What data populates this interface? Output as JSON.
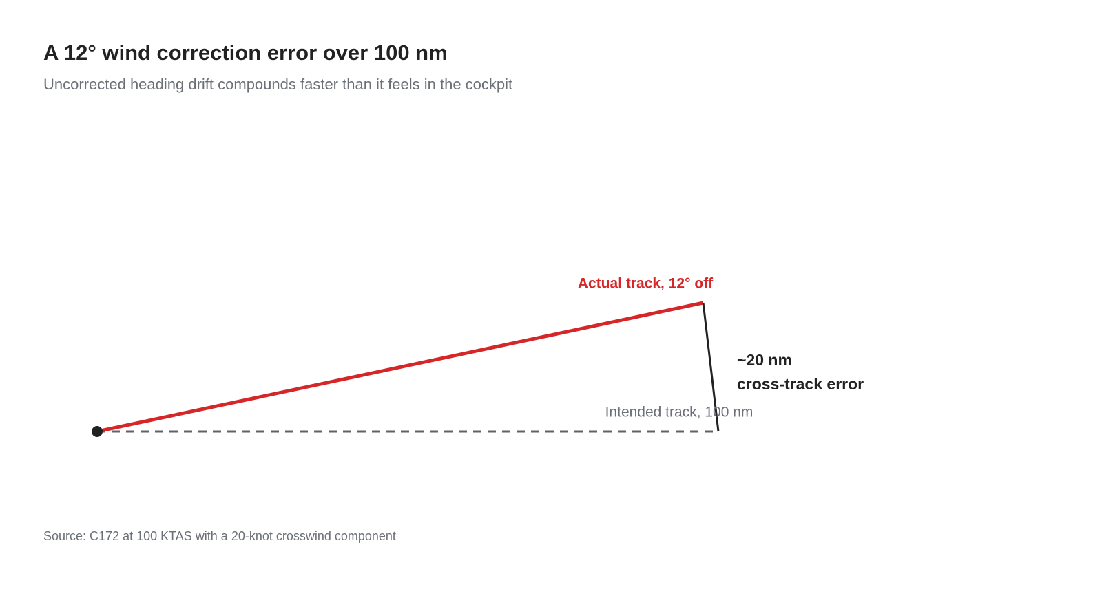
{
  "header": {
    "title": "A 12° wind correction error over 100 nm",
    "subtitle": "Uncorrected heading drift compounds faster than it feels in the cockpit"
  },
  "diagram": {
    "actual_track_label": "Actual track, 12° off",
    "intended_track_label": "Intended track, 100 nm",
    "error_label": [
      "~20 nm",
      "cross-track error"
    ]
  },
  "footer": {
    "source": "Source: C172 at 100 KTAS with a 20-knot crosswind component"
  }
}
